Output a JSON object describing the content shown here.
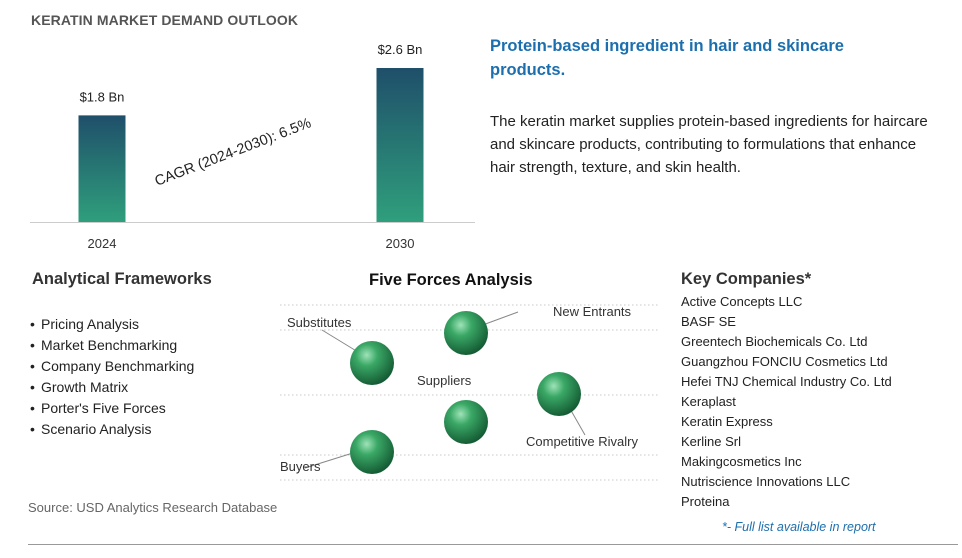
{
  "title": "KERATIN MARKET DEMAND OUTLOOK",
  "chart_data": {
    "type": "bar",
    "categories": [
      "2024",
      "2030"
    ],
    "values": [
      1.8,
      2.6
    ],
    "data_labels": [
      "$1.8 Bn",
      "$2.6 Bn"
    ],
    "annotation": "CAGR (2024-2030):  6.5%",
    "unit": "Bn",
    "ylim": [
      0,
      2.6
    ],
    "grid": false,
    "colors": {
      "bar_top": "#1f4f6a",
      "bar_bottom": "#2f9f7c",
      "baseline": "#cccccc"
    }
  },
  "headline": "Protein-based ingredient in hair and skincare products.",
  "description": "The keratin market supplies protein-based ingredients for haircare and skincare products, contributing to formulations that enhance hair strength, texture, and skin health.",
  "frameworks": {
    "title": "Analytical Frameworks",
    "items": [
      "Pricing Analysis",
      "Market Benchmarking",
      "Company Benchmarking",
      "Growth Matrix",
      "Porter's Five Forces",
      "Scenario Analysis"
    ]
  },
  "five_forces": {
    "title": "Five Forces Analysis",
    "labels": {
      "substitutes": "Substitutes",
      "new_entrants": "New Entrants",
      "suppliers": "Suppliers",
      "competitive_rivalry": "Competitive Rivalry",
      "buyers": "Buyers"
    },
    "sphere_color": "#2e9a5a"
  },
  "companies": {
    "title": "Key Companies*",
    "items": [
      "Active Concepts LLC",
      "BASF SE",
      "Greentech Biochemicals Co. Ltd",
      "Guangzhou FONCIU Cosmetics Ltd",
      "Hefei TNJ Chemical Industry Co. Ltd",
      "Keraplast",
      "Keratin Express",
      "Kerline Srl",
      "Makingcosmetics Inc",
      "Nutriscience Innovations LLC",
      "Proteina"
    ],
    "footnote": "*- Full list available in report"
  },
  "source": "Source: USD Analytics Research Database"
}
